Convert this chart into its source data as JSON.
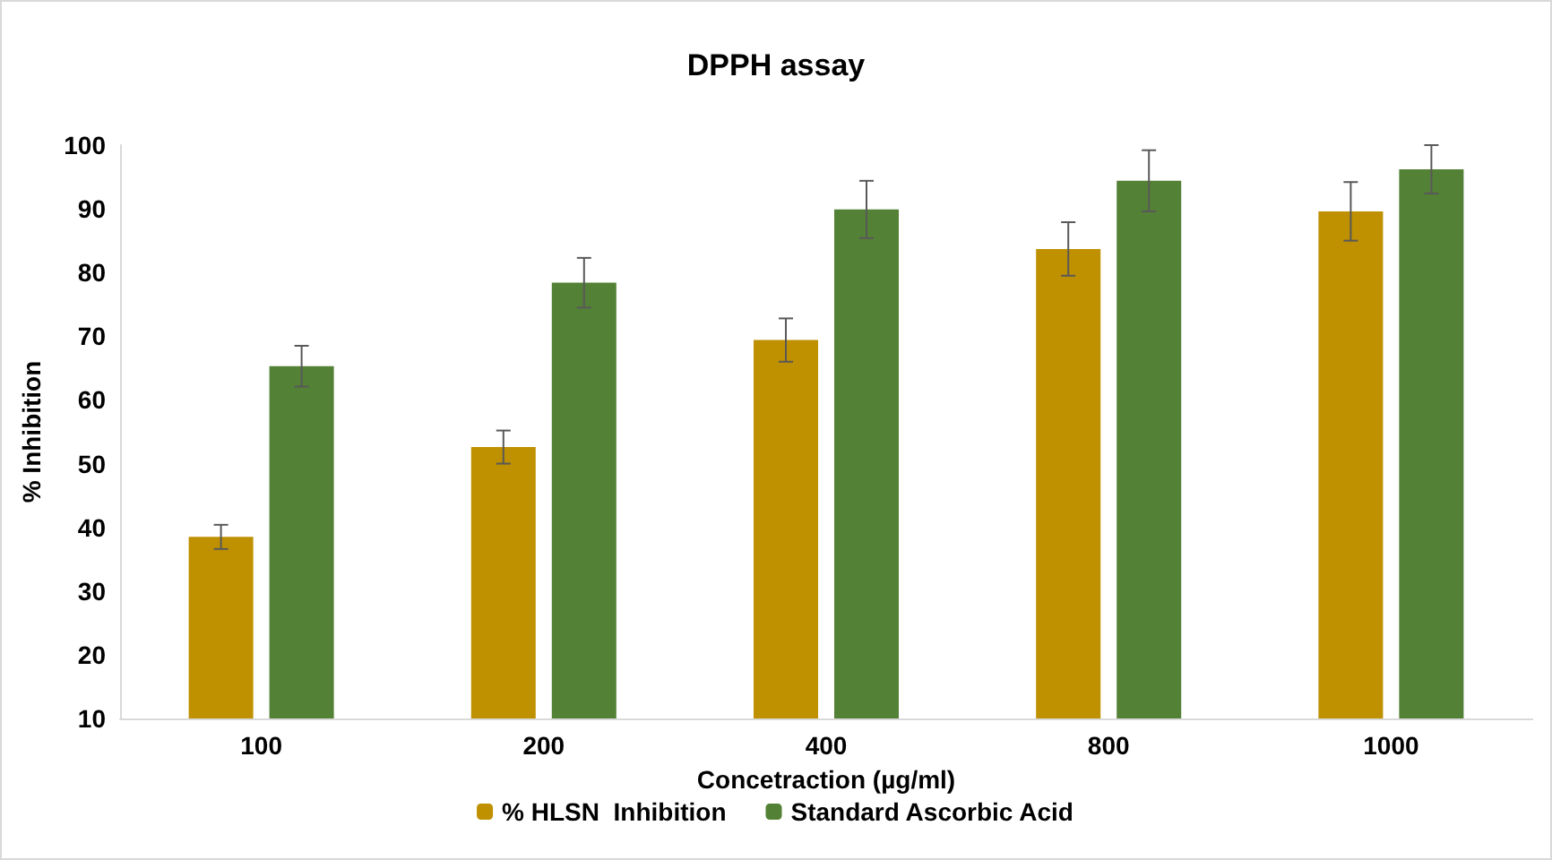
{
  "chart_data": {
    "type": "bar",
    "title": "DPPH assay",
    "xlabel": "Concetraction (µg/ml)",
    "ylabel": "% Inhibition",
    "categories": [
      "100",
      "200",
      "400",
      "800",
      "1000"
    ],
    "series": [
      {
        "name": "% HLSN  Inhibition",
        "color": "#bf9000",
        "values": [
          38.5,
          52.6,
          69.4,
          83.7,
          89.6
        ],
        "errors": [
          1.9,
          2.6,
          3.4,
          4.2,
          4.6
        ]
      },
      {
        "name": "Standard Ascorbic Acid",
        "color": "#538135",
        "values": [
          65.3,
          78.4,
          89.9,
          94.4,
          96.2
        ],
        "errors": [
          3.2,
          3.9,
          4.5,
          4.8,
          3.8
        ]
      }
    ],
    "ylim": [
      10,
      100
    ],
    "yticks": [
      10,
      20,
      30,
      40,
      50,
      60,
      70,
      80,
      90,
      100
    ],
    "grid": false,
    "legend": "bottom"
  }
}
